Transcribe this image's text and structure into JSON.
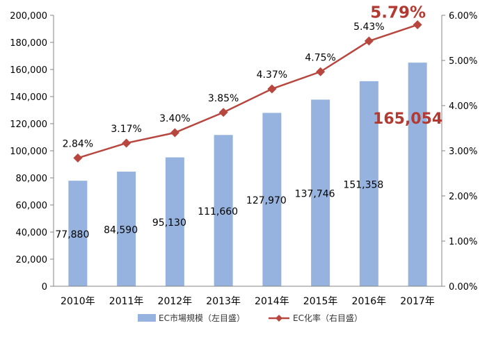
{
  "chart_data": {
    "type": "bar",
    "categories": [
      "2010年",
      "2011年",
      "2012年",
      "2013年",
      "2014年",
      "2015年",
      "2016年",
      "2017年"
    ],
    "series": [
      {
        "name": "EC市場規模（左目盛）",
        "chart": "bar",
        "axis": "left",
        "color": "#95b3de",
        "values": [
          77880,
          84590,
          95130,
          111660,
          127970,
          137746,
          151358,
          165054
        ],
        "labels": [
          "77,880",
          "84,590",
          "95,130",
          "111,660",
          "127,970",
          "137,746",
          "151,358",
          "165,054"
        ]
      },
      {
        "name": "EC化率（右目盛）",
        "chart": "line",
        "axis": "right",
        "color": "#b7463f",
        "values": [
          2.84,
          3.17,
          3.4,
          3.85,
          4.37,
          4.75,
          5.43,
          5.79
        ],
        "labels": [
          "2.84%",
          "3.17%",
          "3.40%",
          "3.85%",
          "4.37%",
          "4.75%",
          "5.43%",
          "5.79%"
        ]
      }
    ],
    "y_left": {
      "lim": [
        0,
        200000
      ],
      "ticks": [
        "0",
        "20,000",
        "40,000",
        "60,000",
        "80,000",
        "100,000",
        "120,000",
        "140,000",
        "160,000",
        "180,000",
        "200,000"
      ]
    },
    "y_right": {
      "lim": [
        0,
        6
      ],
      "ticks": [
        "0.00%",
        "1.00%",
        "2.00%",
        "3.00%",
        "4.00%",
        "5.00%",
        "6.00%"
      ]
    },
    "highlight_color": "#b23a32",
    "grid": false,
    "legend": "bottom"
  }
}
